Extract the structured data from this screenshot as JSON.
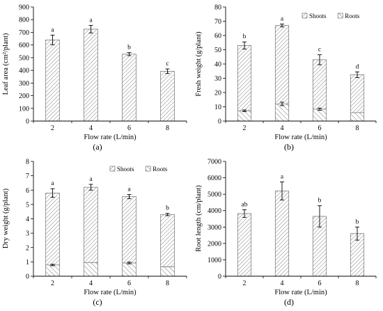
{
  "chart_data": [
    {
      "id": "a",
      "panel_label": "(a)",
      "type": "bar",
      "categories": [
        "2",
        "4",
        "6",
        "8"
      ],
      "values": [
        640,
        725,
        528,
        393
      ],
      "errors": [
        38,
        30,
        12,
        18
      ],
      "letters": [
        "a",
        "a",
        "b",
        "c"
      ],
      "xlabel": "Flow rate (L/min)",
      "ylabel": "Leaf area (cm²/plant)",
      "ylim": [
        0,
        900
      ],
      "yticks": [
        0,
        100,
        200,
        300,
        400,
        500,
        600,
        700,
        800,
        900
      ]
    },
    {
      "id": "b",
      "panel_label": "(b)",
      "type": "bar",
      "stacked": true,
      "categories": [
        "2",
        "4",
        "6",
        "8"
      ],
      "series": [
        {
          "name": "Roots",
          "values": [
            7.2,
            12,
            8.3,
            5.9
          ],
          "errors": [
            0.6,
            1.2,
            0.8,
            0
          ]
        },
        {
          "name": "Shoots",
          "values": [
            53,
            67,
            43,
            32.5
          ],
          "errors": [
            2.5,
            1.0,
            3.5,
            2.0
          ]
        }
      ],
      "letters": [
        "b",
        "a",
        "c",
        "d"
      ],
      "xlabel": "Flow rate (L/min)",
      "ylabel": "Fresh weight (g/plant)",
      "ylim": [
        0,
        80
      ],
      "yticks": [
        0,
        10,
        20,
        30,
        40,
        50,
        60,
        70,
        80
      ],
      "legend": [
        "Shoots",
        "Roots"
      ],
      "legend_position": "top-right"
    },
    {
      "id": "c",
      "panel_label": "(c)",
      "type": "bar",
      "stacked": true,
      "categories": [
        "2",
        "4",
        "6",
        "8"
      ],
      "series": [
        {
          "name": "Roots",
          "values": [
            0.78,
            0.95,
            0.92,
            0.65
          ],
          "errors": [
            0.05,
            0,
            0.06,
            0
          ]
        },
        {
          "name": "Shoots",
          "values": [
            5.8,
            6.2,
            5.55,
            4.3
          ],
          "errors": [
            0.3,
            0.2,
            0.15,
            0.08
          ]
        }
      ],
      "letters": [
        "a",
        "a",
        "a",
        "b"
      ],
      "xlabel": "Flow rate (L/min)",
      "ylabel": "Dry weight (g/plant)",
      "ylim": [
        0,
        8
      ],
      "yticks": [
        0,
        1,
        2,
        3,
        4,
        5,
        6,
        7,
        8
      ],
      "legend": [
        "Shoots",
        "Roots"
      ],
      "legend_position": "top-right"
    },
    {
      "id": "d",
      "panel_label": "(d)",
      "type": "bar",
      "categories": [
        "2",
        "4",
        "6",
        "8"
      ],
      "values": [
        3820,
        5200,
        3650,
        2600
      ],
      "errors": [
        230,
        550,
        650,
        400
      ],
      "letters": [
        "ab",
        "a",
        "b",
        "b"
      ],
      "xlabel": "Flow rate (L/min)",
      "ylabel": "Root length (cm/plant)",
      "ylim": [
        0,
        7000
      ],
      "yticks": [
        0,
        1000,
        2000,
        3000,
        4000,
        5000,
        6000,
        7000
      ]
    }
  ]
}
